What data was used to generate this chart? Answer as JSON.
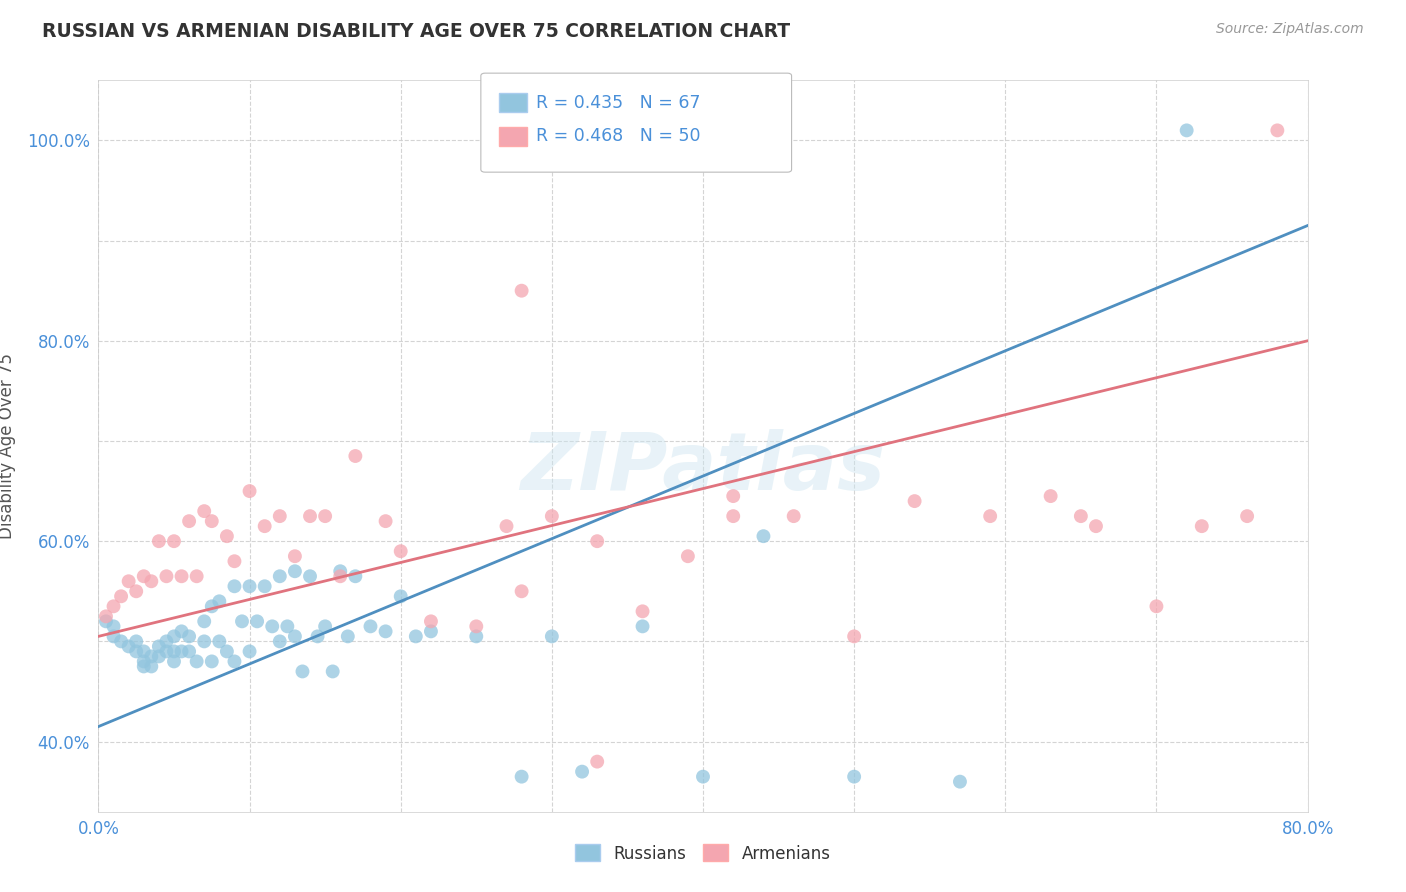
{
  "title": "RUSSIAN VS ARMENIAN DISABILITY AGE OVER 75 CORRELATION CHART",
  "source": "Source: ZipAtlas.com",
  "ylabel": "Disability Age Over 75",
  "xlim": [
    0.0,
    0.8
  ],
  "ylim": [
    0.33,
    1.06
  ],
  "x_ticks": [
    0.0,
    0.1,
    0.2,
    0.3,
    0.4,
    0.5,
    0.6,
    0.7,
    0.8
  ],
  "x_tick_labels": [
    "0.0%",
    "",
    "",
    "",
    "",
    "",
    "",
    "",
    "80.0%"
  ],
  "y_ticks": [
    0.4,
    0.5,
    0.6,
    0.7,
    0.8,
    0.9,
    1.0
  ],
  "y_tick_labels": [
    "40.0%",
    "",
    "60.0%",
    "",
    "80.0%",
    "",
    "100.0%"
  ],
  "russian_R": 0.435,
  "russian_N": 67,
  "armenian_R": 0.468,
  "armenian_N": 50,
  "russian_color": "#92c5de",
  "armenian_color": "#f4a6b0",
  "russian_line_color": "#4f8fc0",
  "armenian_line_color": "#e0737e",
  "legend_R_N_color": "#4a90d9",
  "blue_line_x0": 0.0,
  "blue_line_y0": 0.415,
  "blue_line_x1": 0.8,
  "blue_line_y1": 0.915,
  "pink_line_x0": 0.0,
  "pink_line_y0": 0.505,
  "pink_line_x1": 0.8,
  "pink_line_y1": 0.8,
  "russian_x": [
    0.005,
    0.01,
    0.01,
    0.015,
    0.02,
    0.025,
    0.025,
    0.03,
    0.03,
    0.03,
    0.035,
    0.035,
    0.04,
    0.04,
    0.045,
    0.045,
    0.05,
    0.05,
    0.05,
    0.055,
    0.055,
    0.06,
    0.06,
    0.065,
    0.07,
    0.07,
    0.075,
    0.075,
    0.08,
    0.08,
    0.085,
    0.09,
    0.09,
    0.095,
    0.1,
    0.1,
    0.105,
    0.11,
    0.115,
    0.12,
    0.12,
    0.125,
    0.13,
    0.13,
    0.135,
    0.14,
    0.145,
    0.15,
    0.155,
    0.16,
    0.165,
    0.17,
    0.18,
    0.19,
    0.2,
    0.21,
    0.22,
    0.25,
    0.28,
    0.3,
    0.32,
    0.36,
    0.4,
    0.44,
    0.5,
    0.57,
    0.72
  ],
  "russian_y": [
    0.52,
    0.515,
    0.505,
    0.5,
    0.495,
    0.5,
    0.49,
    0.49,
    0.48,
    0.475,
    0.485,
    0.475,
    0.495,
    0.485,
    0.5,
    0.49,
    0.505,
    0.49,
    0.48,
    0.51,
    0.49,
    0.505,
    0.49,
    0.48,
    0.52,
    0.5,
    0.535,
    0.48,
    0.54,
    0.5,
    0.49,
    0.555,
    0.48,
    0.52,
    0.555,
    0.49,
    0.52,
    0.555,
    0.515,
    0.565,
    0.5,
    0.515,
    0.57,
    0.505,
    0.47,
    0.565,
    0.505,
    0.515,
    0.47,
    0.57,
    0.505,
    0.565,
    0.515,
    0.51,
    0.545,
    0.505,
    0.51,
    0.505,
    0.365,
    0.505,
    0.37,
    0.515,
    0.365,
    0.605,
    0.365,
    0.36,
    1.01
  ],
  "armenian_x": [
    0.005,
    0.01,
    0.015,
    0.02,
    0.025,
    0.03,
    0.035,
    0.04,
    0.045,
    0.05,
    0.055,
    0.06,
    0.065,
    0.07,
    0.075,
    0.085,
    0.09,
    0.1,
    0.11,
    0.12,
    0.13,
    0.14,
    0.15,
    0.16,
    0.17,
    0.19,
    0.2,
    0.22,
    0.25,
    0.27,
    0.28,
    0.3,
    0.33,
    0.36,
    0.39,
    0.42,
    0.46,
    0.5,
    0.54,
    0.59,
    0.63,
    0.66,
    0.7,
    0.73,
    0.76,
    0.78,
    0.28,
    0.33,
    0.42,
    0.65
  ],
  "armenian_y": [
    0.525,
    0.535,
    0.545,
    0.56,
    0.55,
    0.565,
    0.56,
    0.6,
    0.565,
    0.6,
    0.565,
    0.62,
    0.565,
    0.63,
    0.62,
    0.605,
    0.58,
    0.65,
    0.615,
    0.625,
    0.585,
    0.625,
    0.625,
    0.565,
    0.685,
    0.62,
    0.59,
    0.52,
    0.515,
    0.615,
    0.55,
    0.625,
    0.6,
    0.53,
    0.585,
    0.645,
    0.625,
    0.505,
    0.64,
    0.625,
    0.645,
    0.615,
    0.535,
    0.615,
    0.625,
    1.01,
    0.85,
    0.38,
    0.625,
    0.625
  ],
  "watermark": "ZIPatlas",
  "background_color": "#ffffff",
  "grid_color": "#d0d0d0"
}
